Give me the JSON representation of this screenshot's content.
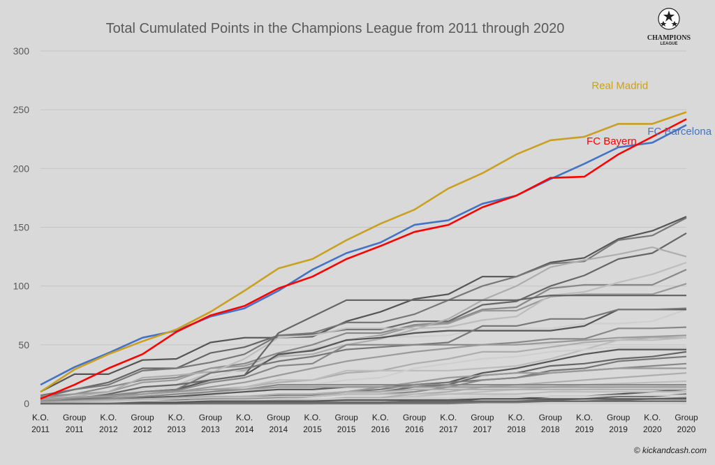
{
  "copyright": "© kickandcash.com",
  "logo": {
    "text": "CHAMPIONS",
    "subtext": "LEAGUE",
    "icon": "champions-league-star-ball"
  },
  "colors": {
    "background": "#d9d9d9",
    "grid": "#c4c4c4",
    "real_madrid": "#c9a020",
    "fc_bayern": "#ff0000",
    "fc_barcelona": "#4472c4",
    "other_teams": [
      "#555555",
      "#666666",
      "#777777",
      "#888888",
      "#9a9a9a",
      "#adadad",
      "#bdbdbd",
      "#cfcfcf"
    ]
  },
  "chart_data": {
    "type": "line",
    "title": "Total Cumulated Points in the Champions League from 2011 through 2020",
    "xlabel": "",
    "ylabel": "",
    "ylim": [
      0,
      300
    ],
    "yticks": [
      0,
      50,
      100,
      150,
      200,
      250,
      300
    ],
    "grid": true,
    "categories": [
      "K.O. 2011",
      "Group 2011",
      "K.O. 2012",
      "Group 2012",
      "K.O. 2013",
      "Group 2013",
      "K.O. 2014",
      "Group 2014",
      "K.O. 2015",
      "Group 2015",
      "K.O. 2016",
      "Group 2016",
      "K.O. 2017",
      "Group 2017",
      "K.O. 2018",
      "Group 2018",
      "K.O. 2019",
      "Group 2019",
      "K.O. 2020",
      "Group 2020"
    ],
    "highlighted_series": [
      {
        "name": "Real Madrid",
        "color_key": "real_madrid",
        "values": [
          10,
          29,
          42,
          53,
          63,
          78,
          96,
          115,
          123,
          139,
          153,
          165,
          183,
          196,
          212,
          224,
          227,
          238,
          238,
          248
        ]
      },
      {
        "name": "FC Bayern",
        "color_key": "fc_bayern",
        "values": [
          4,
          16,
          30,
          42,
          61,
          75,
          83,
          98,
          108,
          123,
          134,
          146,
          152,
          167,
          177,
          192,
          193,
          212,
          227,
          242
        ]
      },
      {
        "name": "FC Barcelona",
        "color_key": "fc_barcelona",
        "values": [
          16,
          31,
          43,
          56,
          62,
          74,
          81,
          96,
          114,
          128,
          137,
          152,
          156,
          170,
          177,
          191,
          204,
          218,
          222,
          237
        ]
      }
    ],
    "other_series": [
      {
        "values": [
          10,
          25,
          25,
          37,
          38,
          52,
          56,
          56,
          57,
          70,
          78,
          89,
          93,
          108,
          108,
          120,
          124,
          140,
          147,
          159
        ]
      },
      {
        "values": [
          5,
          12,
          18,
          30,
          30,
          43,
          48,
          58,
          59,
          63,
          63,
          70,
          70,
          84,
          87,
          100,
          109,
          123,
          128,
          145
        ]
      },
      {
        "values": [
          7,
          12,
          16,
          28,
          30,
          35,
          42,
          58,
          60,
          69,
          69,
          76,
          88,
          100,
          108,
          119,
          121,
          139,
          143,
          158
        ]
      },
      {
        "values": [
          6,
          8,
          14,
          20,
          22,
          30,
          34,
          43,
          50,
          60,
          60,
          67,
          69,
          80,
          82,
          98,
          101,
          101,
          101,
          114
        ]
      },
      {
        "values": [
          4,
          8,
          10,
          18,
          20,
          30,
          32,
          41,
          46,
          54,
          58,
          66,
          68,
          79,
          79,
          91,
          93,
          93,
          93,
          102
        ]
      },
      {
        "values": [
          3,
          6,
          10,
          22,
          24,
          27,
          28,
          40,
          42,
          50,
          55,
          63,
          72,
          88,
          100,
          116,
          122,
          127,
          133,
          125
        ]
      },
      {
        "values": [
          2,
          5,
          6,
          14,
          16,
          26,
          38,
          56,
          58,
          64,
          64,
          64,
          65,
          71,
          74,
          92,
          95,
          103,
          110,
          120
        ]
      },
      {
        "values": [
          2,
          4,
          8,
          12,
          14,
          22,
          30,
          42,
          47,
          54,
          57,
          57,
          58,
          64,
          64,
          64,
          68,
          68,
          70,
          80
        ]
      },
      {
        "values": [
          1,
          3,
          6,
          10,
          12,
          20,
          24,
          42,
          45,
          54,
          56,
          60,
          62,
          62,
          62,
          62,
          66,
          80,
          80,
          80
        ]
      },
      {
        "values": [
          1,
          4,
          8,
          14,
          16,
          20,
          24,
          60,
          74,
          88,
          88,
          88,
          88,
          88,
          88,
          92,
          92,
          92,
          92,
          92
        ]
      },
      {
        "values": [
          2,
          3,
          5,
          10,
          12,
          26,
          30,
          36,
          40,
          46,
          48,
          50,
          52,
          66,
          66,
          72,
          72,
          80,
          80,
          81
        ]
      },
      {
        "values": [
          3,
          5,
          7,
          10,
          11,
          18,
          22,
          32,
          34,
          50,
          50,
          50,
          50,
          50,
          52,
          55,
          55,
          64,
          64,
          65
        ]
      },
      {
        "values": [
          1,
          2,
          4,
          8,
          10,
          14,
          18,
          24,
          30,
          36,
          40,
          44,
          47,
          50,
          50,
          52,
          54,
          56,
          57,
          58
        ]
      },
      {
        "values": [
          0,
          2,
          4,
          8,
          10,
          12,
          14,
          18,
          20,
          26,
          28,
          34,
          38,
          44,
          44,
          48,
          52,
          54,
          56,
          56
        ]
      },
      {
        "values": [
          0,
          1,
          2,
          4,
          6,
          10,
          14,
          20,
          20,
          28,
          28,
          28,
          28,
          30,
          32,
          38,
          46,
          54,
          54,
          56
        ]
      },
      {
        "values": [
          0,
          1,
          1,
          3,
          5,
          8,
          10,
          14,
          16,
          20,
          22,
          30,
          34,
          38,
          40,
          44,
          46,
          48,
          48,
          48
        ]
      },
      {
        "values": [
          1,
          2,
          3,
          5,
          6,
          8,
          10,
          12,
          12,
          14,
          14,
          16,
          18,
          26,
          30,
          36,
          42,
          46,
          46,
          46
        ]
      },
      {
        "values": [
          0,
          0,
          1,
          2,
          3,
          5,
          6,
          7,
          7,
          10,
          10,
          14,
          16,
          24,
          26,
          32,
          34,
          38,
          40,
          44
        ]
      },
      {
        "values": [
          0,
          0,
          0,
          1,
          1,
          4,
          5,
          6,
          8,
          10,
          12,
          16,
          18,
          20,
          22,
          28,
          30,
          36,
          38,
          40
        ]
      },
      {
        "values": [
          0,
          0,
          0,
          0,
          1,
          3,
          4,
          5,
          6,
          8,
          8,
          10,
          14,
          20,
          22,
          26,
          28,
          30,
          32,
          34
        ]
      },
      {
        "values": [
          0,
          0,
          0,
          0,
          0,
          2,
          2,
          4,
          6,
          10,
          14,
          18,
          22,
          24,
          26,
          26,
          28,
          30,
          30,
          30
        ]
      },
      {
        "values": [
          0,
          0,
          0,
          1,
          1,
          2,
          2,
          3,
          3,
          5,
          5,
          8,
          10,
          14,
          16,
          18,
          20,
          22,
          24,
          26
        ]
      },
      {
        "values": [
          0,
          0,
          0,
          0,
          0,
          1,
          1,
          2,
          2,
          4,
          4,
          6,
          8,
          10,
          12,
          14,
          16,
          17,
          18,
          19
        ]
      },
      {
        "values": [
          0,
          0,
          0,
          0,
          0,
          0,
          0,
          1,
          1,
          2,
          2,
          4,
          4,
          6,
          8,
          10,
          12,
          14,
          14,
          16
        ]
      },
      {
        "values": [
          0,
          0,
          0,
          0,
          0,
          0,
          0,
          0,
          0,
          1,
          1,
          2,
          2,
          4,
          4,
          6,
          6,
          8,
          10,
          12
        ]
      },
      {
        "values": [
          0,
          0,
          0,
          0,
          0,
          0,
          0,
          0,
          0,
          0,
          0,
          1,
          1,
          2,
          2,
          3,
          4,
          6,
          6,
          8
        ]
      },
      {
        "values": [
          0,
          0,
          0,
          0,
          0,
          0,
          0,
          0,
          0,
          0,
          0,
          0,
          0,
          1,
          1,
          2,
          2,
          3,
          4,
          5
        ]
      },
      {
        "values": [
          2,
          3,
          4,
          6,
          8,
          10,
          12,
          16,
          16,
          16,
          16,
          16,
          16,
          16,
          16,
          16,
          16,
          16,
          16,
          16
        ]
      },
      {
        "values": [
          3,
          5,
          6,
          8,
          10,
          12,
          12,
          14,
          14,
          14,
          14,
          14,
          14,
          14,
          14,
          14,
          14,
          14,
          14,
          14
        ]
      },
      {
        "values": [
          1,
          2,
          3,
          4,
          5,
          6,
          6,
          8,
          8,
          10,
          10,
          12,
          12,
          12,
          12,
          12,
          12,
          12,
          12,
          12
        ]
      },
      {
        "values": [
          0,
          1,
          2,
          3,
          4,
          5,
          5,
          6,
          6,
          8,
          8,
          8,
          8,
          8,
          8,
          10,
          10,
          10,
          10,
          10
        ]
      },
      {
        "values": [
          0,
          0,
          1,
          2,
          2,
          3,
          3,
          4,
          4,
          4,
          4,
          5,
          5,
          6,
          6,
          6,
          6,
          7,
          7,
          7
        ]
      },
      {
        "values": [
          0,
          0,
          0,
          1,
          1,
          2,
          2,
          2,
          2,
          3,
          3,
          3,
          3,
          4,
          4,
          4,
          4,
          4,
          4,
          4
        ]
      },
      {
        "values": [
          0,
          0,
          0,
          0,
          0,
          1,
          1,
          1,
          1,
          1,
          1,
          2,
          2,
          2,
          2,
          2,
          2,
          2,
          2,
          2
        ]
      }
    ]
  }
}
